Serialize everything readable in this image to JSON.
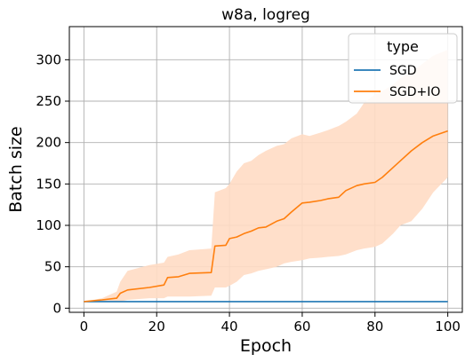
{
  "chart_data": {
    "type": "line",
    "title": "w8a, logreg",
    "xlabel": "Epoch",
    "ylabel": "Batch size",
    "xlim": [
      -4,
      104
    ],
    "ylim": [
      -5,
      340
    ],
    "xticks": [
      0,
      20,
      40,
      60,
      80,
      100
    ],
    "yticks": [
      0,
      50,
      100,
      150,
      200,
      250,
      300
    ],
    "grid": true,
    "legend": {
      "title": "type",
      "placement": "top-right"
    },
    "series": [
      {
        "name": "SGD",
        "color": "#1f77b4",
        "x": [
          0,
          100
        ],
        "y": [
          8,
          8
        ]
      },
      {
        "name": "SGD+IO",
        "color": "#ff7f0e",
        "band_color": "#ffdcc4",
        "x": [
          0,
          5,
          9,
          10,
          12,
          18,
          22,
          23,
          26,
          29,
          35,
          36,
          39,
          40,
          42,
          44,
          46,
          48,
          50,
          53,
          55,
          57,
          60,
          62,
          65,
          67,
          70,
          72,
          75,
          77,
          80,
          82,
          85,
          87,
          90,
          93,
          96,
          100
        ],
        "y": [
          8,
          10,
          12,
          18,
          22,
          25,
          28,
          37,
          38,
          42,
          43,
          75,
          76,
          84,
          86,
          90,
          93,
          97,
          98,
          105,
          108,
          116,
          127,
          128,
          130,
          132,
          134,
          142,
          148,
          150,
          152,
          158,
          170,
          178,
          190,
          200,
          208,
          214
        ],
        "lower": [
          8,
          8,
          8,
          8,
          10,
          12,
          12,
          14,
          14,
          14,
          15,
          25,
          25,
          27,
          32,
          40,
          42,
          45,
          47,
          50,
          54,
          56,
          58,
          60,
          61,
          62,
          63,
          65,
          70,
          72,
          74,
          78,
          90,
          100,
          105,
          120,
          140,
          158
        ],
        "upper": [
          8,
          12,
          20,
          32,
          45,
          52,
          55,
          62,
          65,
          70,
          72,
          140,
          145,
          150,
          165,
          175,
          178,
          185,
          190,
          196,
          198,
          205,
          210,
          208,
          212,
          215,
          220,
          225,
          235,
          248,
          258,
          262,
          270,
          278,
          285,
          295,
          305,
          312
        ]
      }
    ]
  }
}
